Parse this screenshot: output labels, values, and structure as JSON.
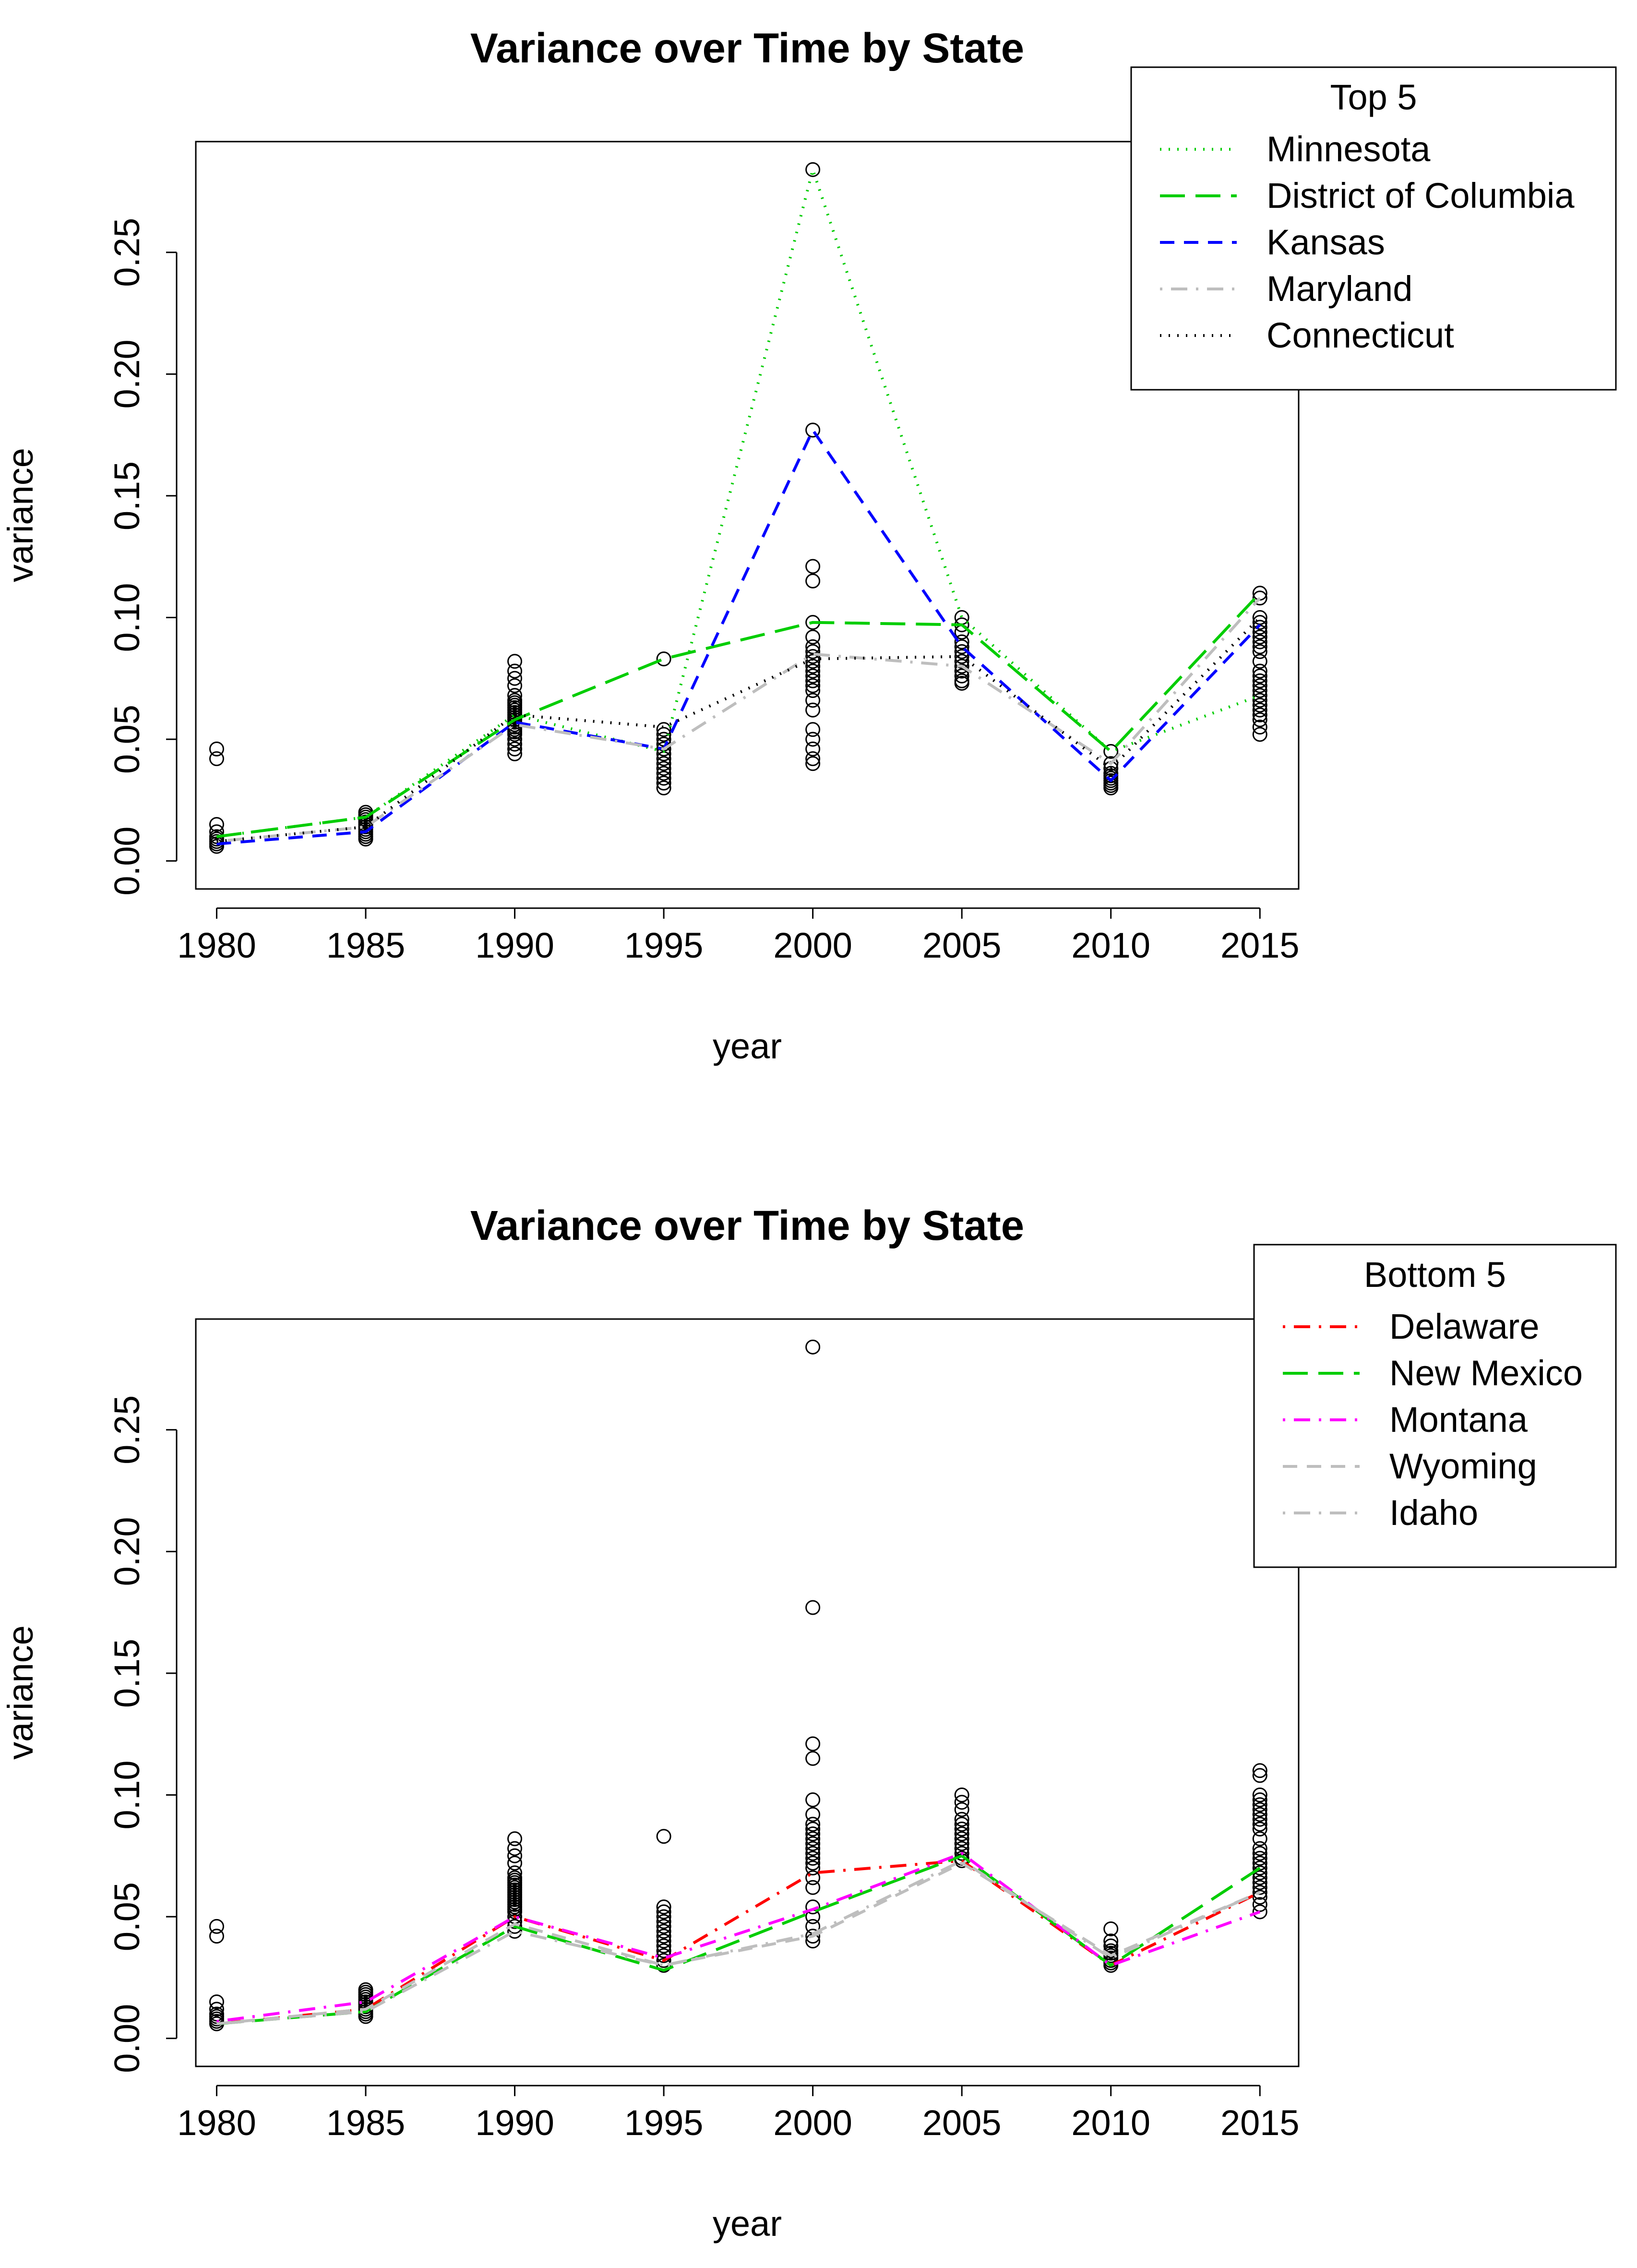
{
  "chart_data": [
    {
      "type": "line",
      "title": "Variance over Time by State",
      "xlabel": "year",
      "ylabel": "variance",
      "x": [
        1980,
        1985,
        1990,
        1995,
        2000,
        2005,
        2010,
        2015
      ],
      "x_tick_labels": [
        "1980",
        "1985",
        "1990",
        "1995",
        "2000",
        "2005",
        "2010",
        "2015"
      ],
      "y_ticks": [
        0.0,
        0.05,
        0.1,
        0.15,
        0.2,
        0.25
      ],
      "y_tick_labels": [
        "0.00",
        "0.05",
        "0.10",
        "0.15",
        "0.20",
        "0.25"
      ],
      "xlim": [
        1979.3,
        2016.3
      ],
      "ylim": [
        -0.0115,
        0.2955
      ],
      "legend": {
        "title": "Top 5",
        "placement": "top-right"
      },
      "scatter_points": [
        {
          "x": 1980,
          "y": [
            0.046,
            0.042,
            0.015,
            0.012,
            0.01,
            0.009,
            0.008,
            0.007,
            0.006
          ]
        },
        {
          "x": 1985,
          "y": [
            0.02,
            0.019,
            0.018,
            0.017,
            0.016,
            0.015,
            0.014,
            0.013,
            0.012,
            0.011,
            0.01,
            0.009
          ]
        },
        {
          "x": 1990,
          "y": [
            0.082,
            0.078,
            0.075,
            0.072,
            0.068,
            0.066,
            0.065,
            0.064,
            0.063,
            0.062,
            0.061,
            0.06,
            0.059,
            0.058,
            0.057,
            0.056,
            0.055,
            0.054,
            0.053,
            0.052,
            0.05,
            0.048,
            0.046,
            0.044
          ]
        },
        {
          "x": 1995,
          "y": [
            0.083,
            0.054,
            0.052,
            0.05,
            0.048,
            0.046,
            0.044,
            0.042,
            0.04,
            0.038,
            0.036,
            0.034,
            0.032,
            0.03
          ]
        },
        {
          "x": 2000,
          "y": [
            0.284,
            0.177,
            0.121,
            0.115,
            0.098,
            0.092,
            0.088,
            0.086,
            0.084,
            0.082,
            0.08,
            0.078,
            0.076,
            0.074,
            0.072,
            0.07,
            0.066,
            0.062,
            0.054,
            0.05,
            0.046,
            0.042,
            0.04
          ]
        },
        {
          "x": 2005,
          "y": [
            0.1,
            0.097,
            0.094,
            0.09,
            0.088,
            0.086,
            0.084,
            0.082,
            0.08,
            0.078,
            0.076,
            0.074,
            0.073
          ]
        },
        {
          "x": 2010,
          "y": [
            0.045,
            0.04,
            0.038,
            0.036,
            0.035,
            0.034,
            0.033,
            0.032,
            0.031,
            0.03
          ]
        },
        {
          "x": 2015,
          "y": [
            0.11,
            0.108,
            0.1,
            0.098,
            0.096,
            0.094,
            0.092,
            0.09,
            0.088,
            0.086,
            0.082,
            0.078,
            0.076,
            0.074,
            0.072,
            0.07,
            0.068,
            0.066,
            0.064,
            0.062,
            0.06,
            0.058,
            0.055,
            0.052
          ]
        }
      ],
      "series": [
        {
          "name": "Minnesota",
          "color": "#00cd00",
          "dash": "dotted",
          "values": [
            0.01,
            0.018,
            0.06,
            0.045,
            0.284,
            0.1,
            0.045,
            0.068
          ]
        },
        {
          "name": "District of Columbia",
          "color": "#00cd00",
          "dash": "longdash",
          "values": [
            0.01,
            0.018,
            0.058,
            0.083,
            0.098,
            0.097,
            0.045,
            0.11
          ]
        },
        {
          "name": "Kansas",
          "color": "#0000ff",
          "dash": "dashed",
          "values": [
            0.007,
            0.012,
            0.057,
            0.046,
            0.177,
            0.088,
            0.033,
            0.097
          ]
        },
        {
          "name": "Maryland",
          "color": "#bebebe",
          "dash": "dotdash",
          "values": [
            0.008,
            0.014,
            0.056,
            0.046,
            0.085,
            0.08,
            0.04,
            0.108
          ]
        },
        {
          "name": "Connecticut",
          "color": "#000000",
          "dash": "dotted",
          "values": [
            0.008,
            0.014,
            0.06,
            0.055,
            0.083,
            0.084,
            0.038,
            0.1
          ]
        }
      ]
    },
    {
      "type": "line",
      "title": "Variance over Time by State",
      "xlabel": "year",
      "ylabel": "variance",
      "x": [
        1980,
        1985,
        1990,
        1995,
        2000,
        2005,
        2010,
        2015
      ],
      "x_tick_labels": [
        "1980",
        "1985",
        "1990",
        "1995",
        "2000",
        "2005",
        "2010",
        "2015"
      ],
      "y_ticks": [
        0.0,
        0.05,
        0.1,
        0.15,
        0.2,
        0.25
      ],
      "y_tick_labels": [
        "0.00",
        "0.05",
        "0.10",
        "0.15",
        "0.20",
        "0.25"
      ],
      "xlim": [
        1979.3,
        2016.3
      ],
      "ylim": [
        -0.0115,
        0.2955
      ],
      "legend": {
        "title": "Bottom 5",
        "placement": "top-right"
      },
      "scatter_points": [
        {
          "x": 1980,
          "y": [
            0.046,
            0.042,
            0.015,
            0.012,
            0.01,
            0.009,
            0.008,
            0.007,
            0.006
          ]
        },
        {
          "x": 1985,
          "y": [
            0.02,
            0.019,
            0.018,
            0.017,
            0.016,
            0.015,
            0.014,
            0.013,
            0.012,
            0.011,
            0.01,
            0.009
          ]
        },
        {
          "x": 1990,
          "y": [
            0.082,
            0.078,
            0.075,
            0.072,
            0.068,
            0.066,
            0.065,
            0.064,
            0.063,
            0.062,
            0.061,
            0.06,
            0.059,
            0.058,
            0.057,
            0.056,
            0.055,
            0.054,
            0.053,
            0.052,
            0.05,
            0.048,
            0.046,
            0.044
          ]
        },
        {
          "x": 1995,
          "y": [
            0.083,
            0.054,
            0.052,
            0.05,
            0.048,
            0.046,
            0.044,
            0.042,
            0.04,
            0.038,
            0.036,
            0.034,
            0.032,
            0.03
          ]
        },
        {
          "x": 2000,
          "y": [
            0.284,
            0.177,
            0.121,
            0.115,
            0.098,
            0.092,
            0.088,
            0.086,
            0.084,
            0.082,
            0.08,
            0.078,
            0.076,
            0.074,
            0.072,
            0.07,
            0.066,
            0.062,
            0.054,
            0.05,
            0.046,
            0.042,
            0.04
          ]
        },
        {
          "x": 2005,
          "y": [
            0.1,
            0.097,
            0.094,
            0.09,
            0.088,
            0.086,
            0.084,
            0.082,
            0.08,
            0.078,
            0.076,
            0.074,
            0.073
          ]
        },
        {
          "x": 2010,
          "y": [
            0.045,
            0.04,
            0.038,
            0.036,
            0.035,
            0.034,
            0.033,
            0.032,
            0.031,
            0.03
          ]
        },
        {
          "x": 2015,
          "y": [
            0.11,
            0.108,
            0.1,
            0.098,
            0.096,
            0.094,
            0.092,
            0.09,
            0.088,
            0.086,
            0.082,
            0.078,
            0.076,
            0.074,
            0.072,
            0.07,
            0.068,
            0.066,
            0.064,
            0.062,
            0.06,
            0.058,
            0.055,
            0.052
          ]
        }
      ],
      "series": [
        {
          "name": "Delaware",
          "color": "#ff0000",
          "dash": "dotdash",
          "values": [
            0.006,
            0.012,
            0.05,
            0.032,
            0.068,
            0.073,
            0.03,
            0.06
          ]
        },
        {
          "name": "New Mexico",
          "color": "#00cd00",
          "dash": "longdash",
          "values": [
            0.006,
            0.011,
            0.046,
            0.028,
            0.052,
            0.075,
            0.03,
            0.07
          ]
        },
        {
          "name": "Montana",
          "color": "#ff00ff",
          "dash": "dotdash",
          "values": [
            0.007,
            0.015,
            0.05,
            0.033,
            0.053,
            0.076,
            0.03,
            0.052
          ]
        },
        {
          "name": "Wyoming",
          "color": "#bebebe",
          "dash": "dashed",
          "values": [
            0.006,
            0.012,
            0.047,
            0.03,
            0.042,
            0.072,
            0.034,
            0.06
          ]
        },
        {
          "name": "Idaho",
          "color": "#bebebe",
          "dash": "dotdash",
          "values": [
            0.006,
            0.011,
            0.044,
            0.03,
            0.043,
            0.073,
            0.033,
            0.06
          ]
        }
      ]
    }
  ]
}
